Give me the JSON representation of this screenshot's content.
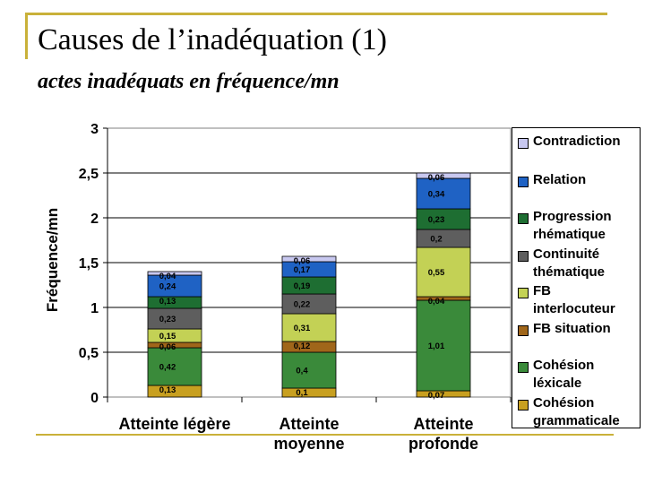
{
  "slide": {
    "title": "Causes de l’inadéquation (1)",
    "subtitle": "actes inadéquats en fréquence/mn"
  },
  "chart_data": {
    "type": "bar",
    "stacked": true,
    "ylabel": "Fréquence/mn",
    "ylim": [
      0,
      3
    ],
    "yticks": [
      "0",
      "0,5",
      "1",
      "1,5",
      "2",
      "2,5",
      "3"
    ],
    "ytick_values": [
      0,
      0.5,
      1,
      1.5,
      2,
      2.5,
      3
    ],
    "categories": [
      "Atteinte légère",
      "Atteinte moyenne",
      "Atteinte profonde"
    ],
    "category_labels": [
      [
        "Atteinte légère"
      ],
      [
        "Atteinte",
        "moyenne"
      ],
      [
        "Atteinte",
        "profonde"
      ]
    ],
    "series": [
      {
        "name": "Cohésion grammaticale",
        "color": "#c8a020",
        "values": [
          0.13,
          0.1,
          0.07
        ],
        "labels": [
          "0,13",
          "0,1",
          "0,07"
        ]
      },
      {
        "name": "Cohésion léxicale",
        "color": "#3a8a3a",
        "values": [
          0.42,
          0.4,
          1.01
        ],
        "labels": [
          "0,42",
          "0,4",
          "1,01"
        ]
      },
      {
        "name": "FB situation",
        "color": "#a0661a",
        "values": [
          0.06,
          0.12,
          0.04
        ],
        "labels": [
          "0,06",
          "0,12",
          "0,04"
        ]
      },
      {
        "name": "FB interlocuteur",
        "color": "#c3d155",
        "values": [
          0.15,
          0.31,
          0.55
        ],
        "labels": [
          "0,15",
          "0,31",
          "0,55"
        ]
      },
      {
        "name": "Continuité thématique",
        "color": "#5e5e5e",
        "values": [
          0.23,
          0.22,
          0.2
        ],
        "labels": [
          "0,23",
          "0,22",
          "0,2"
        ]
      },
      {
        "name": "Progression rhématique",
        "color": "#1e6e32",
        "values": [
          0.13,
          0.19,
          0.23
        ],
        "labels": [
          "0,13",
          "0,19",
          "0,23"
        ]
      },
      {
        "name": "Relation",
        "color": "#1f62c4",
        "values": [
          0.24,
          0.17,
          0.34
        ],
        "labels": [
          "0,24",
          "0,17",
          "0,34"
        ]
      },
      {
        "name": "Contradiction",
        "color": "#c8c8f0",
        "values": [
          0.04,
          0.06,
          0.06
        ],
        "labels": [
          "0,04",
          "0,06",
          "0,06"
        ]
      }
    ],
    "legend": {
      "position": "right",
      "items": [
        {
          "lines": [
            "Contradiction"
          ],
          "color": "#c8c8f0"
        },
        {
          "lines": [
            "Relation"
          ],
          "color": "#1f62c4"
        },
        {
          "lines": [
            "Progression",
            "rhématique"
          ],
          "color": "#1e6e32"
        },
        {
          "lines": [
            "Continuité",
            "thématique"
          ],
          "color": "#5e5e5e"
        },
        {
          "lines": [
            "FB",
            "interlocuteur"
          ],
          "color": "#c3d155"
        },
        {
          "lines": [
            "FB situation"
          ],
          "color": "#a0661a"
        },
        {
          "lines": [
            "Cohésion",
            "léxicale"
          ],
          "color": "#3a8a3a"
        },
        {
          "lines": [
            "Cohésion",
            "grammaticale"
          ],
          "color": "#c8a020"
        }
      ]
    },
    "grid": true
  }
}
